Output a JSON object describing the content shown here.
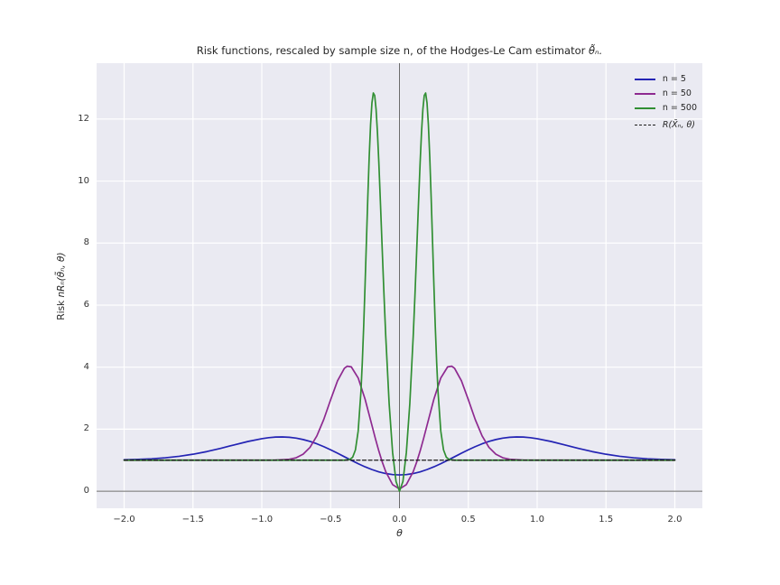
{
  "labels": {
    "title_text": "Risk functions, rescaled by sample size n, of the Hodges-Le Cam estimator ",
    "title_math": "θ̃ₙ.",
    "ylabel_text": "Risk ",
    "ylabel_math": "nRₙ(θ̃ₙ, θ)"
  },
  "colors": {
    "figure_bg": "#ffffff",
    "axes_bg": "#eaeaf2",
    "grid": "#ffffff",
    "zero_line": "#6b6b6b",
    "text": "#262626"
  },
  "chart_data": {
    "type": "line",
    "title": "Risk functions, rescaled by sample size n, of the Hodges-Le Cam estimator θ̃ₙ.",
    "xlabel": "θ",
    "ylabel": "Risk nRₙ(θ̃ₙ, θ)",
    "xlim": [
      -2.2,
      2.2
    ],
    "ylim": [
      -0.55,
      13.8
    ],
    "x_ticks": [
      -2.0,
      -1.5,
      -1.0,
      -0.5,
      0.0,
      0.5,
      1.0,
      1.5,
      2.0
    ],
    "x_tick_labels": [
      "−2.0",
      "−1.5",
      "−1.0",
      "−0.5",
      "0.0",
      "0.5",
      "1.0",
      "1.5",
      "2.0"
    ],
    "y_ticks": [
      0,
      2,
      4,
      6,
      8,
      10,
      12
    ],
    "y_tick_labels": [
      "0",
      "2",
      "4",
      "6",
      "8",
      "10",
      "12"
    ],
    "grid": true,
    "zero_lines": {
      "x": 0,
      "y": 0
    },
    "legend_position": "upper right",
    "series": [
      {
        "key": "n5",
        "name": "n = 5",
        "color": "#2424b4",
        "style": "solid",
        "italic": false,
        "points": [
          [
            -2,
            1.014
          ],
          [
            -1.9,
            1.026
          ],
          [
            -1.8,
            1.045
          ],
          [
            -1.7,
            1.078
          ],
          [
            -1.6,
            1.126
          ],
          [
            -1.5,
            1.192
          ],
          [
            -1.4,
            1.277
          ],
          [
            -1.3,
            1.381
          ],
          [
            -1.2,
            1.494
          ],
          [
            -1.1,
            1.604
          ],
          [
            -1.0,
            1.694
          ],
          [
            -0.95,
            1.726
          ],
          [
            -0.9,
            1.745
          ],
          [
            -0.85,
            1.75
          ],
          [
            -0.8,
            1.739
          ],
          [
            -0.75,
            1.711
          ],
          [
            -0.7,
            1.666
          ],
          [
            -0.65,
            1.605
          ],
          [
            -0.6,
            1.528
          ],
          [
            -0.55,
            1.437
          ],
          [
            -0.5,
            1.335
          ],
          [
            -0.45,
            1.225
          ],
          [
            -0.4,
            1.111
          ],
          [
            -0.35,
            0.998
          ],
          [
            -0.3,
            0.888
          ],
          [
            -0.25,
            0.786
          ],
          [
            -0.2,
            0.698
          ],
          [
            -0.15,
            0.624
          ],
          [
            -0.1,
            0.57
          ],
          [
            -0.05,
            0.536
          ],
          [
            0,
            0.525
          ],
          [
            0.05,
            0.536
          ],
          [
            0.1,
            0.57
          ],
          [
            0.15,
            0.624
          ],
          [
            0.2,
            0.698
          ],
          [
            0.25,
            0.786
          ],
          [
            0.3,
            0.888
          ],
          [
            0.35,
            0.998
          ],
          [
            0.4,
            1.111
          ],
          [
            0.45,
            1.225
          ],
          [
            0.5,
            1.335
          ],
          [
            0.55,
            1.437
          ],
          [
            0.6,
            1.528
          ],
          [
            0.65,
            1.605
          ],
          [
            0.7,
            1.666
          ],
          [
            0.75,
            1.711
          ],
          [
            0.8,
            1.739
          ],
          [
            0.85,
            1.75
          ],
          [
            0.9,
            1.745
          ],
          [
            0.95,
            1.726
          ],
          [
            1.0,
            1.694
          ],
          [
            1.1,
            1.604
          ],
          [
            1.2,
            1.494
          ],
          [
            1.3,
            1.381
          ],
          [
            1.4,
            1.277
          ],
          [
            1.5,
            1.192
          ],
          [
            1.6,
            1.126
          ],
          [
            1.7,
            1.078
          ],
          [
            1.8,
            1.045
          ],
          [
            1.9,
            1.026
          ],
          [
            2.0,
            1.014
          ]
        ]
      },
      {
        "key": "n50",
        "name": "n = 50",
        "color": "#8e2a90",
        "style": "solid",
        "italic": false,
        "points": [
          [
            -2,
            1
          ],
          [
            -1.5,
            1
          ],
          [
            -1.0,
            1
          ],
          [
            -0.9,
            1.003
          ],
          [
            -0.8,
            1.029
          ],
          [
            -0.75,
            1.079
          ],
          [
            -0.7,
            1.192
          ],
          [
            -0.65,
            1.413
          ],
          [
            -0.6,
            1.784
          ],
          [
            -0.55,
            2.314
          ],
          [
            -0.5,
            2.951
          ],
          [
            -0.45,
            3.56
          ],
          [
            -0.4,
            3.963
          ],
          [
            -0.38,
            4.03
          ],
          [
            -0.35,
            4.009
          ],
          [
            -0.3,
            3.652
          ],
          [
            -0.25,
            2.968
          ],
          [
            -0.2,
            2.123
          ],
          [
            -0.175,
            1.697
          ],
          [
            -0.15,
            1.297
          ],
          [
            -0.125,
            0.939
          ],
          [
            -0.1,
            0.633
          ],
          [
            -0.05,
            0.213
          ],
          [
            0,
            0.07
          ],
          [
            0.05,
            0.213
          ],
          [
            0.1,
            0.633
          ],
          [
            0.125,
            0.939
          ],
          [
            0.15,
            1.297
          ],
          [
            0.175,
            1.697
          ],
          [
            0.2,
            2.123
          ],
          [
            0.25,
            2.968
          ],
          [
            0.3,
            3.652
          ],
          [
            0.35,
            4.009
          ],
          [
            0.38,
            4.03
          ],
          [
            0.4,
            3.963
          ],
          [
            0.45,
            3.56
          ],
          [
            0.5,
            2.951
          ],
          [
            0.55,
            2.314
          ],
          [
            0.6,
            1.784
          ],
          [
            0.65,
            1.413
          ],
          [
            0.7,
            1.192
          ],
          [
            0.75,
            1.079
          ],
          [
            0.8,
            1.029
          ],
          [
            0.9,
            1.003
          ],
          [
            1.0,
            1
          ],
          [
            1.5,
            1
          ],
          [
            2,
            1
          ]
        ]
      },
      {
        "key": "n500",
        "name": "n = 500",
        "color": "#318f33",
        "style": "solid",
        "italic": false,
        "points": [
          [
            -2,
            1
          ],
          [
            -1.5,
            1
          ],
          [
            -1.0,
            1
          ],
          [
            -0.5,
            1
          ],
          [
            -0.4,
            1
          ],
          [
            -0.36,
            1.023
          ],
          [
            -0.34,
            1.097
          ],
          [
            -0.32,
            1.331
          ],
          [
            -0.3,
            1.94
          ],
          [
            -0.28,
            3.206
          ],
          [
            -0.27,
            4.157
          ],
          [
            -0.26,
            5.316
          ],
          [
            -0.25,
            6.646
          ],
          [
            -0.24,
            8.071
          ],
          [
            -0.23,
            9.484
          ],
          [
            -0.22,
            10.771
          ],
          [
            -0.21,
            11.816
          ],
          [
            -0.2,
            12.524
          ],
          [
            -0.19,
            12.839
          ],
          [
            -0.18,
            12.759
          ],
          [
            -0.17,
            12.312
          ],
          [
            -0.16,
            11.565
          ],
          [
            -0.15,
            10.596
          ],
          [
            -0.1375,
            9.207
          ],
          [
            -0.125,
            7.751
          ],
          [
            -0.1125,
            6.333
          ],
          [
            -0.1,
            5.019
          ],
          [
            -0.075,
            2.822
          ],
          [
            -0.05,
            1.252
          ],
          [
            -0.025,
            0.313
          ],
          [
            0,
            0.002
          ],
          [
            0.025,
            0.313
          ],
          [
            0.05,
            1.252
          ],
          [
            0.075,
            2.822
          ],
          [
            0.1,
            5.019
          ],
          [
            0.1125,
            6.333
          ],
          [
            0.125,
            7.751
          ],
          [
            0.1375,
            9.207
          ],
          [
            0.15,
            10.596
          ],
          [
            0.16,
            11.565
          ],
          [
            0.17,
            12.312
          ],
          [
            0.18,
            12.759
          ],
          [
            0.19,
            12.839
          ],
          [
            0.2,
            12.524
          ],
          [
            0.21,
            11.816
          ],
          [
            0.22,
            10.771
          ],
          [
            0.23,
            9.484
          ],
          [
            0.24,
            8.071
          ],
          [
            0.25,
            6.646
          ],
          [
            0.26,
            5.316
          ],
          [
            0.27,
            4.157
          ],
          [
            0.28,
            3.206
          ],
          [
            0.3,
            1.94
          ],
          [
            0.32,
            1.331
          ],
          [
            0.34,
            1.097
          ],
          [
            0.36,
            1.023
          ],
          [
            0.4,
            1
          ],
          [
            0.5,
            1
          ],
          [
            1.0,
            1
          ],
          [
            1.5,
            1
          ],
          [
            2,
            1
          ]
        ]
      },
      {
        "key": "mean",
        "name": "R(X̄ₙ, θ)",
        "color": "#1a1a1a",
        "style": "dashed",
        "italic": true,
        "points": [
          [
            -2,
            1
          ],
          [
            2,
            1
          ]
        ]
      }
    ]
  }
}
